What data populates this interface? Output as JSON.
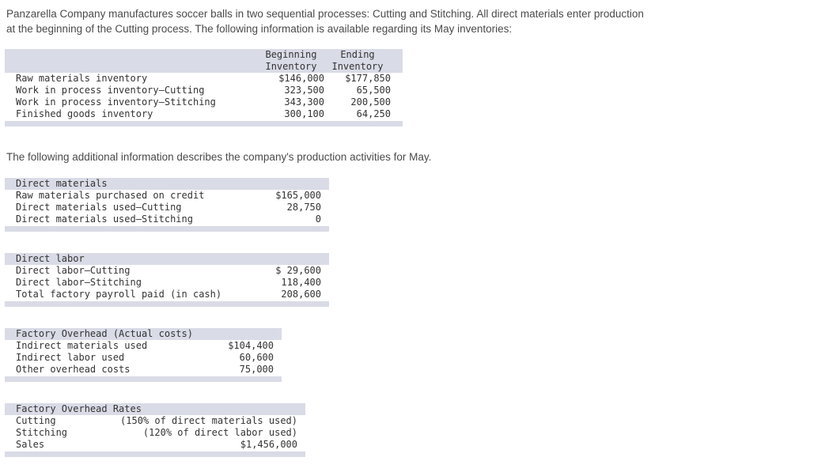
{
  "colors": {
    "page-bg": "#ffffff",
    "text": "#4a4a4a",
    "table-text": "#333333",
    "table-header-bg": "#d9dbe6"
  },
  "intro": {
    "lines": [
      "Panzarella Company manufactures soccer balls in two sequential processes: Cutting and Stitching. All direct materials enter production",
      "at the beginning of the Cutting process. The following information is available regarding its May inventories:"
    ]
  },
  "inventories_table": {
    "col_headers": [
      {
        "line1": "Beginning",
        "line2": "Inventory"
      },
      {
        "line1": "Ending",
        "line2": "Inventory"
      }
    ],
    "rows": [
      {
        "label": "Raw materials inventory",
        "beginning": "$146,000",
        "ending": "$177,850"
      },
      {
        "label": "Work in process inventory—Cutting",
        "beginning": "323,500",
        "ending": "65,500"
      },
      {
        "label": "Work in process inventory—Stitching",
        "beginning": "343,300",
        "ending": "200,500"
      },
      {
        "label": "Finished goods inventory",
        "beginning": "300,100",
        "ending": "64,250"
      }
    ]
  },
  "activities_intro": "The following additional information describes the company's production activities for May.",
  "direct_materials": {
    "title": "Direct materials",
    "rows": [
      {
        "label": "Raw materials purchased on credit",
        "value": "$165,000"
      },
      {
        "label": "Direct materials used—Cutting",
        "value": "28,750"
      },
      {
        "label": "Direct materials used—Stitching",
        "value": "0"
      }
    ]
  },
  "direct_labor": {
    "title": "Direct labor",
    "rows": [
      {
        "label": "Direct labor—Cutting",
        "value": "$ 29,600"
      },
      {
        "label": "Direct labor—Stitching",
        "value": "118,400"
      },
      {
        "label": "Total factory payroll paid (in cash)",
        "value": "208,600"
      }
    ]
  },
  "factory_overhead_actual": {
    "title": "Factory Overhead (Actual costs)",
    "rows": [
      {
        "label": "Indirect materials used",
        "value": "$104,400"
      },
      {
        "label": "Indirect labor used",
        "value": "60,600"
      },
      {
        "label": "Other overhead costs",
        "value": "75,000"
      }
    ]
  },
  "factory_overhead_rates": {
    "title": "Factory Overhead Rates",
    "rows": [
      {
        "label": "Cutting",
        "value": "(150% of direct materials used)"
      },
      {
        "label": "Stitching",
        "value": "(120% of direct labor used)"
      },
      {
        "label": "Sales",
        "value": "$1,456,000"
      }
    ]
  }
}
